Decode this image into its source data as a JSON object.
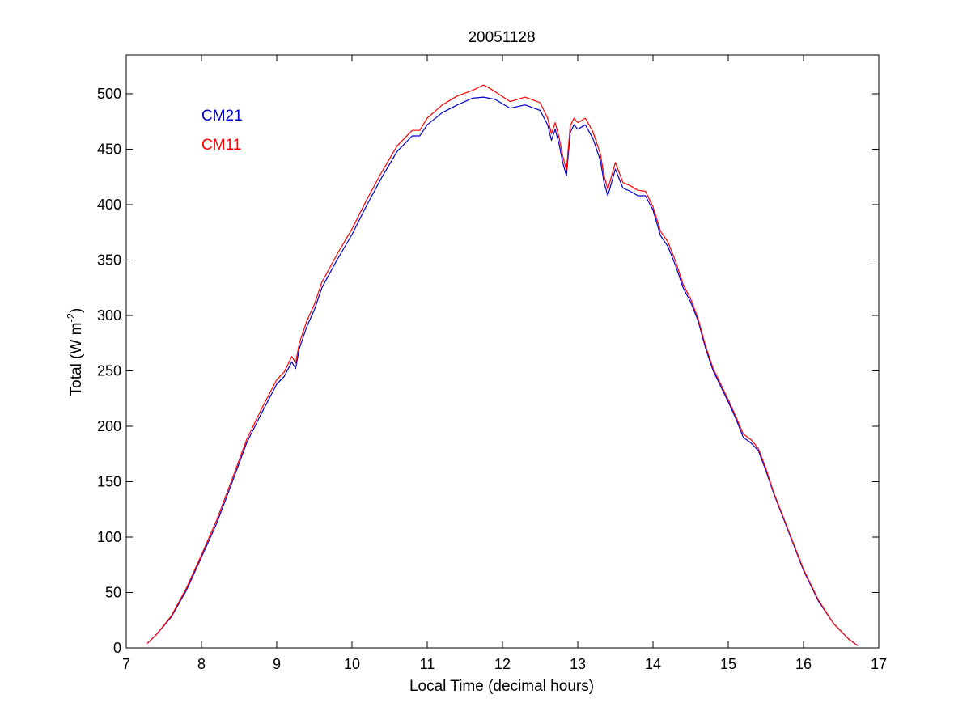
{
  "chart_data": {
    "type": "line",
    "title": "20051128",
    "xlabel": "Local Time (decimal hours)",
    "ylabel": {
      "prefix": "Total (W m",
      "sup": "-2",
      "suffix": ")"
    },
    "xlim": [
      7,
      17
    ],
    "ylim": [
      0,
      535
    ],
    "xticks": [
      7,
      8,
      9,
      10,
      11,
      12,
      13,
      14,
      15,
      16,
      17
    ],
    "yticks": [
      0,
      50,
      100,
      150,
      200,
      250,
      300,
      350,
      400,
      450,
      500
    ],
    "grid": false,
    "legend_position": "top-left",
    "series": [
      {
        "name": "CM21",
        "color": "#0000cc",
        "x": [
          7.28,
          7.4,
          7.6,
          7.8,
          8.0,
          8.2,
          8.4,
          8.6,
          8.8,
          9.0,
          9.1,
          9.2,
          9.25,
          9.3,
          9.4,
          9.5,
          9.6,
          9.8,
          10.0,
          10.2,
          10.4,
          10.6,
          10.8,
          10.9,
          11.0,
          11.2,
          11.4,
          11.6,
          11.75,
          11.9,
          12.1,
          12.3,
          12.5,
          12.6,
          12.65,
          12.7,
          12.75,
          12.8,
          12.85,
          12.9,
          12.95,
          13.0,
          13.1,
          13.2,
          13.3,
          13.35,
          13.4,
          13.5,
          13.6,
          13.7,
          13.8,
          13.9,
          14.0,
          14.1,
          14.2,
          14.3,
          14.4,
          14.5,
          14.6,
          14.7,
          14.8,
          14.9,
          15.0,
          15.1,
          15.2,
          15.3,
          15.4,
          15.5,
          15.6,
          15.8,
          16.0,
          16.2,
          16.4,
          16.6,
          16.72
        ],
        "y": [
          4,
          12,
          28,
          52,
          82,
          112,
          148,
          185,
          212,
          238,
          245,
          258,
          252,
          270,
          290,
          305,
          325,
          350,
          373,
          400,
          425,
          448,
          462,
          462,
          472,
          483,
          490,
          496,
          497,
          495,
          487,
          490,
          485,
          472,
          458,
          468,
          455,
          438,
          426,
          465,
          472,
          468,
          472,
          460,
          440,
          420,
          408,
          432,
          415,
          412,
          408,
          408,
          395,
          372,
          362,
          345,
          325,
          312,
          295,
          270,
          250,
          236,
          222,
          207,
          190,
          185,
          178,
          160,
          140,
          105,
          70,
          42,
          22,
          8,
          2
        ]
      },
      {
        "name": "CM11",
        "color": "#ff0000",
        "x": [
          7.28,
          7.4,
          7.6,
          7.8,
          8.0,
          8.2,
          8.4,
          8.6,
          8.8,
          9.0,
          9.1,
          9.2,
          9.25,
          9.3,
          9.4,
          9.5,
          9.6,
          9.8,
          10.0,
          10.2,
          10.4,
          10.6,
          10.8,
          10.9,
          11.0,
          11.2,
          11.4,
          11.6,
          11.75,
          11.9,
          12.1,
          12.3,
          12.5,
          12.6,
          12.65,
          12.7,
          12.75,
          12.8,
          12.85,
          12.9,
          12.95,
          13.0,
          13.1,
          13.2,
          13.3,
          13.35,
          13.4,
          13.5,
          13.6,
          13.7,
          13.8,
          13.9,
          14.0,
          14.1,
          14.2,
          14.3,
          14.4,
          14.5,
          14.6,
          14.7,
          14.8,
          14.9,
          15.0,
          15.1,
          15.2,
          15.3,
          15.4,
          15.5,
          15.6,
          15.8,
          16.0,
          16.2,
          16.4,
          16.6,
          16.72
        ],
        "y": [
          4,
          12,
          29,
          54,
          84,
          115,
          151,
          188,
          216,
          242,
          249,
          263,
          257,
          275,
          295,
          310,
          330,
          355,
          378,
          405,
          430,
          453,
          467,
          467,
          478,
          490,
          498,
          503,
          508,
          502,
          493,
          497,
          492,
          478,
          464,
          474,
          461,
          444,
          431,
          471,
          478,
          474,
          478,
          466,
          446,
          426,
          414,
          438,
          420,
          417,
          413,
          412,
          398,
          376,
          366,
          349,
          328,
          315,
          297,
          272,
          252,
          238,
          224,
          209,
          193,
          188,
          180,
          162,
          141,
          106,
          71,
          43,
          22,
          8,
          2
        ]
      }
    ]
  }
}
